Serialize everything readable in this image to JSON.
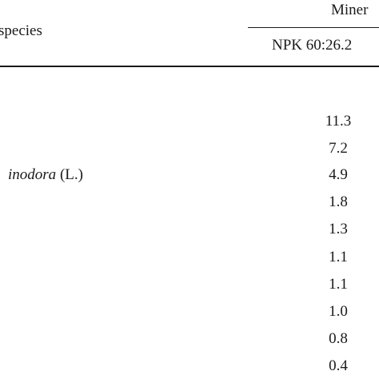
{
  "table": {
    "header": {
      "species_label": "species",
      "group_label": "Miner",
      "column_label": "NPK 60:26.2"
    },
    "species_fragment": {
      "italic_part": "inodora",
      "authority": " (L.)"
    },
    "values": [
      "11.3",
      "7.2",
      "4.9",
      "1.8",
      "1.3",
      "1.1",
      "1.1",
      "1.0",
      "0.8",
      "0.4"
    ]
  }
}
